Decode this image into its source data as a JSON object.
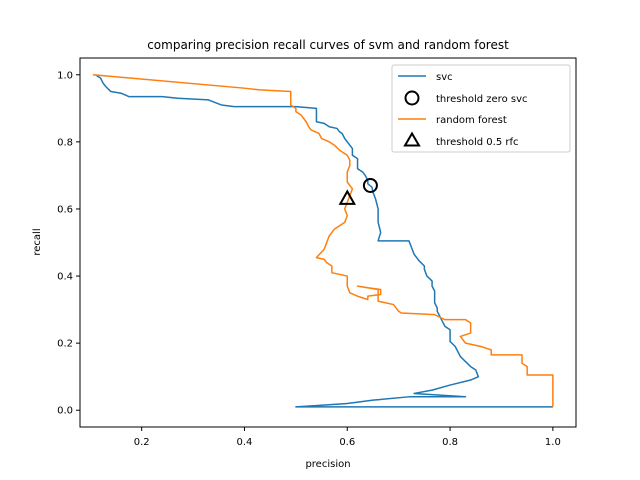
{
  "chart_data": {
    "type": "line",
    "title": "comparing precision recall curves of svm and random forest",
    "xlabel": "precision",
    "ylabel": "recall",
    "xlim": [
      0.08,
      1.045
    ],
    "ylim": [
      -0.05,
      1.05
    ],
    "xticks": [
      0.2,
      0.4,
      0.6,
      0.8,
      1.0
    ],
    "xtick_labels": [
      "0.2",
      "0.4",
      "0.6",
      "0.8",
      "1.0"
    ],
    "yticks": [
      0.0,
      0.2,
      0.4,
      0.6,
      0.8,
      1.0
    ],
    "ytick_labels": [
      "0.0",
      "0.2",
      "0.4",
      "0.6",
      "0.8",
      "1.0"
    ],
    "grid": false,
    "legend_position": "upper-right",
    "series": [
      {
        "name": "svc",
        "kind": "line",
        "color": "#1f77b4",
        "points": [
          [
            0.11,
            1.0
          ],
          [
            0.12,
            0.99
          ],
          [
            0.125,
            0.975
          ],
          [
            0.13,
            0.965
          ],
          [
            0.14,
            0.95
          ],
          [
            0.16,
            0.945
          ],
          [
            0.175,
            0.935
          ],
          [
            0.24,
            0.935
          ],
          [
            0.27,
            0.93
          ],
          [
            0.33,
            0.925
          ],
          [
            0.355,
            0.91
          ],
          [
            0.38,
            0.905
          ],
          [
            0.45,
            0.905
          ],
          [
            0.5,
            0.905
          ],
          [
            0.54,
            0.9
          ],
          [
            0.54,
            0.86
          ],
          [
            0.555,
            0.855
          ],
          [
            0.565,
            0.845
          ],
          [
            0.58,
            0.84
          ],
          [
            0.585,
            0.83
          ],
          [
            0.59,
            0.825
          ],
          [
            0.595,
            0.81
          ],
          [
            0.6,
            0.8
          ],
          [
            0.605,
            0.79
          ],
          [
            0.61,
            0.78
          ],
          [
            0.61,
            0.76
          ],
          [
            0.62,
            0.75
          ],
          [
            0.62,
            0.72
          ],
          [
            0.63,
            0.71
          ],
          [
            0.635,
            0.7
          ],
          [
            0.64,
            0.685
          ],
          [
            0.64,
            0.675
          ],
          [
            0.648,
            0.665
          ],
          [
            0.65,
            0.65
          ],
          [
            0.655,
            0.63
          ],
          [
            0.66,
            0.6
          ],
          [
            0.66,
            0.56
          ],
          [
            0.665,
            0.53
          ],
          [
            0.66,
            0.505
          ],
          [
            0.72,
            0.505
          ],
          [
            0.725,
            0.485
          ],
          [
            0.73,
            0.465
          ],
          [
            0.74,
            0.445
          ],
          [
            0.75,
            0.43
          ],
          [
            0.75,
            0.42
          ],
          [
            0.755,
            0.4
          ],
          [
            0.765,
            0.385
          ],
          [
            0.765,
            0.37
          ],
          [
            0.77,
            0.355
          ],
          [
            0.77,
            0.34
          ],
          [
            0.77,
            0.32
          ],
          [
            0.775,
            0.305
          ],
          [
            0.775,
            0.295
          ],
          [
            0.78,
            0.28
          ],
          [
            0.785,
            0.265
          ],
          [
            0.79,
            0.25
          ],
          [
            0.8,
            0.24
          ],
          [
            0.8,
            0.22
          ],
          [
            0.8,
            0.205
          ],
          [
            0.81,
            0.19
          ],
          [
            0.815,
            0.175
          ],
          [
            0.82,
            0.16
          ],
          [
            0.83,
            0.145
          ],
          [
            0.84,
            0.13
          ],
          [
            0.85,
            0.12
          ],
          [
            0.855,
            0.1
          ],
          [
            0.84,
            0.09
          ],
          [
            0.8,
            0.075
          ],
          [
            0.765,
            0.06
          ],
          [
            0.73,
            0.05
          ],
          [
            0.83,
            0.04
          ],
          [
            0.72,
            0.04
          ],
          [
            0.65,
            0.03
          ],
          [
            0.6,
            0.02
          ],
          [
            0.55,
            0.015
          ],
          [
            0.5,
            0.01
          ],
          [
            1.0,
            0.01
          ]
        ]
      },
      {
        "name": "threshold zero svc",
        "kind": "marker",
        "marker": "circle",
        "color": "#000000",
        "points": [
          [
            0.645,
            0.67
          ]
        ]
      },
      {
        "name": "random forest",
        "kind": "line",
        "color": "#ff7f0e",
        "points": [
          [
            0.105,
            1.0
          ],
          [
            0.4,
            0.96
          ],
          [
            0.43,
            0.955
          ],
          [
            0.49,
            0.95
          ],
          [
            0.49,
            0.91
          ],
          [
            0.5,
            0.9
          ],
          [
            0.5,
            0.89
          ],
          [
            0.51,
            0.88
          ],
          [
            0.515,
            0.87
          ],
          [
            0.52,
            0.86
          ],
          [
            0.525,
            0.845
          ],
          [
            0.53,
            0.835
          ],
          [
            0.545,
            0.825
          ],
          [
            0.55,
            0.81
          ],
          [
            0.565,
            0.8
          ],
          [
            0.575,
            0.79
          ],
          [
            0.585,
            0.775
          ],
          [
            0.6,
            0.76
          ],
          [
            0.605,
            0.745
          ],
          [
            0.605,
            0.73
          ],
          [
            0.6,
            0.71
          ],
          [
            0.6,
            0.68
          ],
          [
            0.61,
            0.66
          ],
          [
            0.6,
            0.62
          ],
          [
            0.595,
            0.6
          ],
          [
            0.6,
            0.58
          ],
          [
            0.595,
            0.56
          ],
          [
            0.575,
            0.54
          ],
          [
            0.565,
            0.52
          ],
          [
            0.56,
            0.5
          ],
          [
            0.555,
            0.48
          ],
          [
            0.54,
            0.455
          ],
          [
            0.555,
            0.45
          ],
          [
            0.56,
            0.44
          ],
          [
            0.57,
            0.43
          ],
          [
            0.57,
            0.41
          ],
          [
            0.6,
            0.4
          ],
          [
            0.6,
            0.37
          ],
          [
            0.605,
            0.35
          ],
          [
            0.62,
            0.34
          ],
          [
            0.63,
            0.335
          ],
          [
            0.64,
            0.33
          ],
          [
            0.64,
            0.34
          ],
          [
            0.665,
            0.345
          ],
          [
            0.665,
            0.36
          ],
          [
            0.64,
            0.365
          ],
          [
            0.62,
            0.37
          ],
          [
            0.66,
            0.36
          ],
          [
            0.66,
            0.325
          ],
          [
            0.69,
            0.315
          ],
          [
            0.7,
            0.295
          ],
          [
            0.705,
            0.29
          ],
          [
            0.77,
            0.285
          ],
          [
            0.79,
            0.27
          ],
          [
            0.83,
            0.27
          ],
          [
            0.84,
            0.26
          ],
          [
            0.84,
            0.23
          ],
          [
            0.82,
            0.22
          ],
          [
            0.83,
            0.2
          ],
          [
            0.86,
            0.19
          ],
          [
            0.87,
            0.185
          ],
          [
            0.88,
            0.18
          ],
          [
            0.88,
            0.165
          ],
          [
            0.94,
            0.165
          ],
          [
            0.94,
            0.14
          ],
          [
            0.95,
            0.13
          ],
          [
            0.95,
            0.105
          ],
          [
            1.0,
            0.105
          ],
          [
            1.0,
            0.01
          ]
        ]
      },
      {
        "name": "threshold 0.5 rfc",
        "kind": "marker",
        "marker": "triangle",
        "color": "#000000",
        "points": [
          [
            0.6,
            0.63
          ]
        ]
      }
    ]
  }
}
